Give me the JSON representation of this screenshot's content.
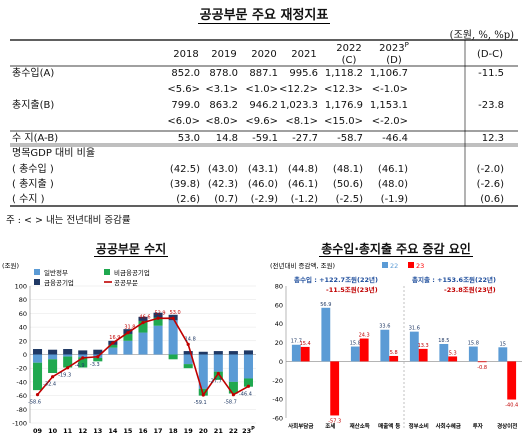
{
  "header": {
    "title": "공공부문 주요 재정지표",
    "unit": "(조원, %, %p)"
  },
  "table": {
    "columns": [
      "2018",
      "2019",
      "2020",
      "2021",
      "2022",
      "2023",
      "(D-C)"
    ],
    "column_sub": [
      "",
      "",
      "",
      "",
      "(C)",
      "(D)",
      ""
    ],
    "col_2023_sup": "P",
    "rows": [
      {
        "label": "총수입(A)",
        "values": [
          "852.0",
          "878.0",
          "887.1",
          "995.6",
          "1,118.2",
          "1,106.7",
          "-11.5"
        ]
      },
      {
        "label": "",
        "values": [
          "<5.6>",
          "<3.1>",
          "<1.0>",
          "<12.2>",
          "<12.3>",
          "<-1.0>",
          ""
        ]
      },
      {
        "label": "총지출(B)",
        "values": [
          "799.0",
          "863.2",
          "946.2",
          "1,023.3",
          "1,176.9",
          "1,153.1",
          "-23.8"
        ]
      },
      {
        "label": "",
        "values": [
          "<6.0>",
          "<8.0>",
          "<9.6>",
          "<8.1>",
          "<15.0>",
          "<-2.0>",
          ""
        ]
      },
      {
        "label": "수 지(A-B)",
        "values": [
          "53.0",
          "14.8",
          "-59.1",
          "-27.7",
          "-58.7",
          "-46.4",
          "12.3"
        ]
      },
      {
        "label": "명목GDP 대비 비율",
        "values": [
          "",
          "",
          "",
          "",
          "",
          "",
          ""
        ]
      },
      {
        "label": "( 총수입 )",
        "values": [
          "(42.5)",
          "(43.0)",
          "(43.1)",
          "(44.8)",
          "(48.1)",
          "(46.1)",
          "(-2.0)"
        ]
      },
      {
        "label": "( 총지출 )",
        "values": [
          "(39.8)",
          "(42.3)",
          "(46.0)",
          "(46.1)",
          "(50.6)",
          "(48.0)",
          "(-2.6)"
        ]
      },
      {
        "label": "( 수지 )",
        "values": [
          "(2.6)",
          "(0.7)",
          "(-2.9)",
          "(-1.2)",
          "(-2.5)",
          "(-1.9)",
          "(0.6)"
        ]
      }
    ]
  },
  "note": "주 : < > 내는 전년대비 증감률",
  "chart_data": [
    {
      "type": "bar",
      "title": "공공부문 수지",
      "ylabel": "(조원)",
      "ylim": [
        -100,
        100
      ],
      "yticks": [
        -100,
        -80,
        -60,
        -40,
        -20,
        0,
        20,
        40,
        60,
        80,
        100
      ],
      "categories": [
        "09",
        "10",
        "11",
        "12",
        "13",
        "14",
        "15",
        "16",
        "17",
        "18",
        "19",
        "20",
        "21",
        "22",
        "23"
      ],
      "last_category_sup": "P",
      "legend_position": "top-left",
      "series": [
        {
          "name": "일반정부",
          "kind": "bar",
          "color": "#5b9bd5",
          "values": [
            -12,
            -7,
            -3,
            -4,
            -5,
            10,
            20,
            32,
            42,
            50,
            -14,
            -50,
            -25,
            -40,
            -35
          ]
        },
        {
          "name": "비금융공기업",
          "kind": "bar",
          "color": "#1fa84f",
          "values": [
            -40,
            -20,
            -16,
            -15,
            -5,
            4,
            10,
            17,
            12,
            -7,
            -6,
            -10,
            -12,
            -17,
            -12
          ]
        },
        {
          "name": "금융공기업",
          "kind": "bar",
          "color": "#1f3864",
          "values": [
            8,
            7,
            8,
            6,
            7,
            6,
            7,
            6,
            7,
            8,
            5,
            4,
            5,
            5,
            6
          ]
        },
        {
          "name": "공공부문",
          "kind": "line",
          "color": "#c00000",
          "values": [
            -58.6,
            -32.4,
            -19.3,
            -4.9,
            -3.3,
            16.9,
            31.8,
            46.6,
            52.9,
            53.0,
            14.8,
            -59.1,
            -27.7,
            -58.7,
            -46.4
          ]
        }
      ],
      "labels": [
        "-58.6",
        "-32.4",
        "-19.3",
        "-4.9",
        "-3.3",
        "16.9",
        "31.8",
        "46.6",
        "52.9",
        "53.0",
        "14.8",
        "-59.1",
        "-27.7",
        "-58.7",
        "-46.4"
      ]
    },
    {
      "type": "bar",
      "title": "총수입·총지출 주요 증감 요인",
      "ylabel": "(전년대비 증감액, 조원)",
      "ylim": [
        -60,
        80
      ],
      "yticks": [
        -60,
        -40,
        -20,
        0,
        20,
        40,
        60,
        80
      ],
      "legend_position": "top-right",
      "categories": [
        "사회부담금",
        "조세",
        "재산소득",
        "매출액 등",
        "정부소비",
        "사회수혜금",
        "투자",
        "경상이전"
      ],
      "series": [
        {
          "name": "22",
          "color": "#5b9bd5",
          "values": [
            17.7,
            56.9,
            15.8,
            33.6,
            31.6,
            18.5,
            15.8,
            15.0
          ]
        },
        {
          "name": "23",
          "color": "#ff0000",
          "values": [
            15.4,
            -57.3,
            24.3,
            5.8,
            13.3,
            5.3,
            -0.8,
            -40.4
          ]
        }
      ],
      "annotations": [
        {
          "label": "총수입 : +122.7조원(22년)",
          "color": "#1f4e9c"
        },
        {
          "label": "-11.5조원(23년)",
          "color": "#c00000"
        },
        {
          "label": "총지출 : +153.6조원(22년)",
          "color": "#1f4e9c"
        },
        {
          "label": "-23.8조원(23년)",
          "color": "#c00000"
        }
      ]
    }
  ]
}
